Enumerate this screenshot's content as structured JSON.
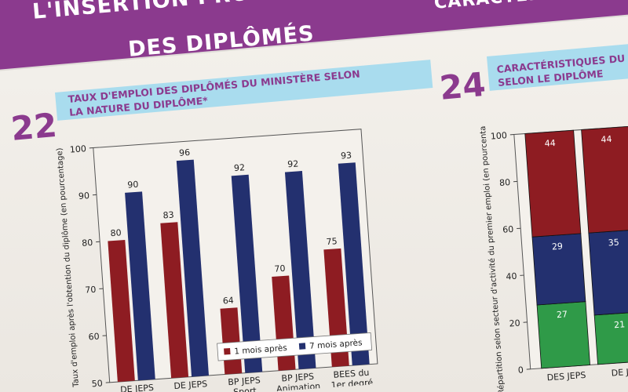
{
  "header": {
    "title_line1": "L'INSERTION PROFESSIONNELLE",
    "title_line2": "DES DIPLÔMÉS",
    "right_title": "CARACTÉRISTIQUES"
  },
  "section22": {
    "number": "22",
    "subtitle_line1": "TAUX D'EMPLOI DES DIPLÔMÉS DU MINISTÈRE SELON",
    "subtitle_line2": "LA NATURE DU DIPLÔME*"
  },
  "section24": {
    "number": "24",
    "subtitle_line1": "CARACTÉRISTIQUES DU SECT",
    "subtitle_line2": "SELON LE DIPLÔME"
  },
  "colors": {
    "purple": "#8b3a8e",
    "red": "#8e1c22",
    "blue": "#23306f",
    "green": "#2f9a48",
    "strip": "#a9dcee"
  },
  "chart_data": [
    {
      "type": "bar",
      "categories": [
        [
          "DE JEPS"
        ],
        [
          "DE JEPS"
        ],
        [
          "BP JEPS",
          "Sport"
        ],
        [
          "BP JEPS",
          "Animation"
        ],
        [
          "BEES du",
          "1er degré"
        ]
      ],
      "series": [
        {
          "name": "1 mois après",
          "color": "#8e1c22",
          "values": [
            80,
            83,
            64,
            70,
            75
          ]
        },
        {
          "name": "7 mois après",
          "color": "#23306f",
          "values": [
            90,
            96,
            92,
            92,
            93
          ]
        }
      ],
      "ylabel": "Taux d'emploi après l'obtention du diplôme (en pourcentage)",
      "ylim": [
        50,
        100
      ],
      "yticks": [
        50,
        60,
        70,
        80,
        90,
        100
      ],
      "legend": "bottom"
    },
    {
      "type": "bar",
      "stacked": true,
      "categories": [
        "DES JEPS",
        "DE JE"
      ],
      "series": [
        {
          "color": "#2f9a48",
          "values": [
            27,
            21
          ]
        },
        {
          "color": "#23306f",
          "values": [
            29,
            35
          ]
        },
        {
          "color": "#8e1c22",
          "values": [
            44,
            44
          ]
        }
      ],
      "ylabel": "Répartition selon secteur d'activité du premier emploi (en pourcentage)",
      "ylim": [
        0,
        100
      ],
      "yticks": [
        0,
        20,
        40,
        60,
        80,
        100
      ]
    }
  ]
}
